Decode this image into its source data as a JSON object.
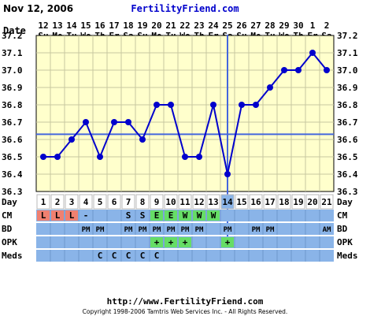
{
  "header": {
    "date_text": "Nov 12, 2006",
    "site": "FertilityFriend.com"
  },
  "footer": {
    "url": "http://www.FertilityFriend.com",
    "copyright": "Copyright 1998-2006 Tamtris Web Services Inc. - All Rights Reserved."
  },
  "colors": {
    "plot_bg": "#ffffcc",
    "grid": "#c7c7a0",
    "line": "#0000cc",
    "coverline": "#4466dd",
    "cycle_row_bg": "#ffffff",
    "row_bg": "#8ab4e8",
    "cm_L": "#f08070",
    "cm_E": "#66dd66",
    "cm_W": "#66dd66",
    "opk_plus": "#66dd66",
    "text": "#000000"
  },
  "chart_data": {
    "type": "line",
    "title": "",
    "xlabel": "",
    "ylabel": "",
    "date_row_label": "Date",
    "day_row_label": "Day",
    "dates": [
      "12",
      "13",
      "14",
      "15",
      "16",
      "17",
      "18",
      "19",
      "20",
      "21",
      "22",
      "23",
      "24",
      "25",
      "26",
      "27",
      "28",
      "29",
      "30",
      "1",
      "2"
    ],
    "weekdays": [
      "Su",
      "Mo",
      "Tu",
      "We",
      "Th",
      "Fr",
      "Sa",
      "Su",
      "Mo",
      "Tu",
      "We",
      "Th",
      "Fr",
      "Sa",
      "Su",
      "Mo",
      "Tu",
      "We",
      "Th",
      "Fr",
      "Sa"
    ],
    "cycle_days": [
      1,
      2,
      3,
      4,
      5,
      6,
      7,
      8,
      9,
      10,
      11,
      12,
      13,
      14,
      15,
      16,
      17,
      18,
      19,
      20,
      21
    ],
    "temperatures": [
      36.5,
      36.5,
      36.6,
      36.7,
      36.5,
      36.7,
      36.7,
      36.6,
      36.8,
      36.8,
      36.5,
      36.5,
      36.8,
      36.4,
      36.8,
      36.8,
      36.9,
      37.0,
      37.0,
      37.1,
      37.0
    ],
    "y_ticks": [
      "37.2",
      "37.1",
      "37.0",
      "36.9",
      "36.8",
      "36.7",
      "36.6",
      "36.5",
      "36.4",
      "36.3"
    ],
    "ylim": [
      36.3,
      37.2
    ],
    "coverline": 36.63,
    "ovulation_cycle_day": 14,
    "grid": true,
    "rows": [
      {
        "label": "CM",
        "values": [
          "L",
          "L",
          "L",
          "-",
          "",
          "",
          "S",
          "S",
          "E",
          "E",
          "W",
          "W",
          "W",
          "",
          "",
          "",
          "",
          "",
          "",
          "",
          ""
        ]
      },
      {
        "label": "BD",
        "values": [
          "",
          "",
          "",
          "PM",
          "PM",
          "",
          "PM",
          "PM",
          "PM",
          "PM",
          "PM",
          "PM",
          "",
          "PM",
          "",
          "PM",
          "PM",
          "",
          "",
          "",
          "AM"
        ]
      },
      {
        "label": "OPK",
        "values": [
          "",
          "",
          "",
          "",
          "",
          "",
          "",
          "",
          "+",
          "+",
          "+",
          "",
          "",
          "+",
          "",
          "",
          "",
          "",
          "",
          "",
          ""
        ]
      },
      {
        "label": "Meds",
        "values": [
          "",
          "",
          "",
          "",
          "C",
          "C",
          "C",
          "C",
          "C",
          "",
          "",
          "",
          "",
          "",
          "",
          "",
          "",
          "",
          "",
          "",
          ""
        ]
      }
    ]
  }
}
